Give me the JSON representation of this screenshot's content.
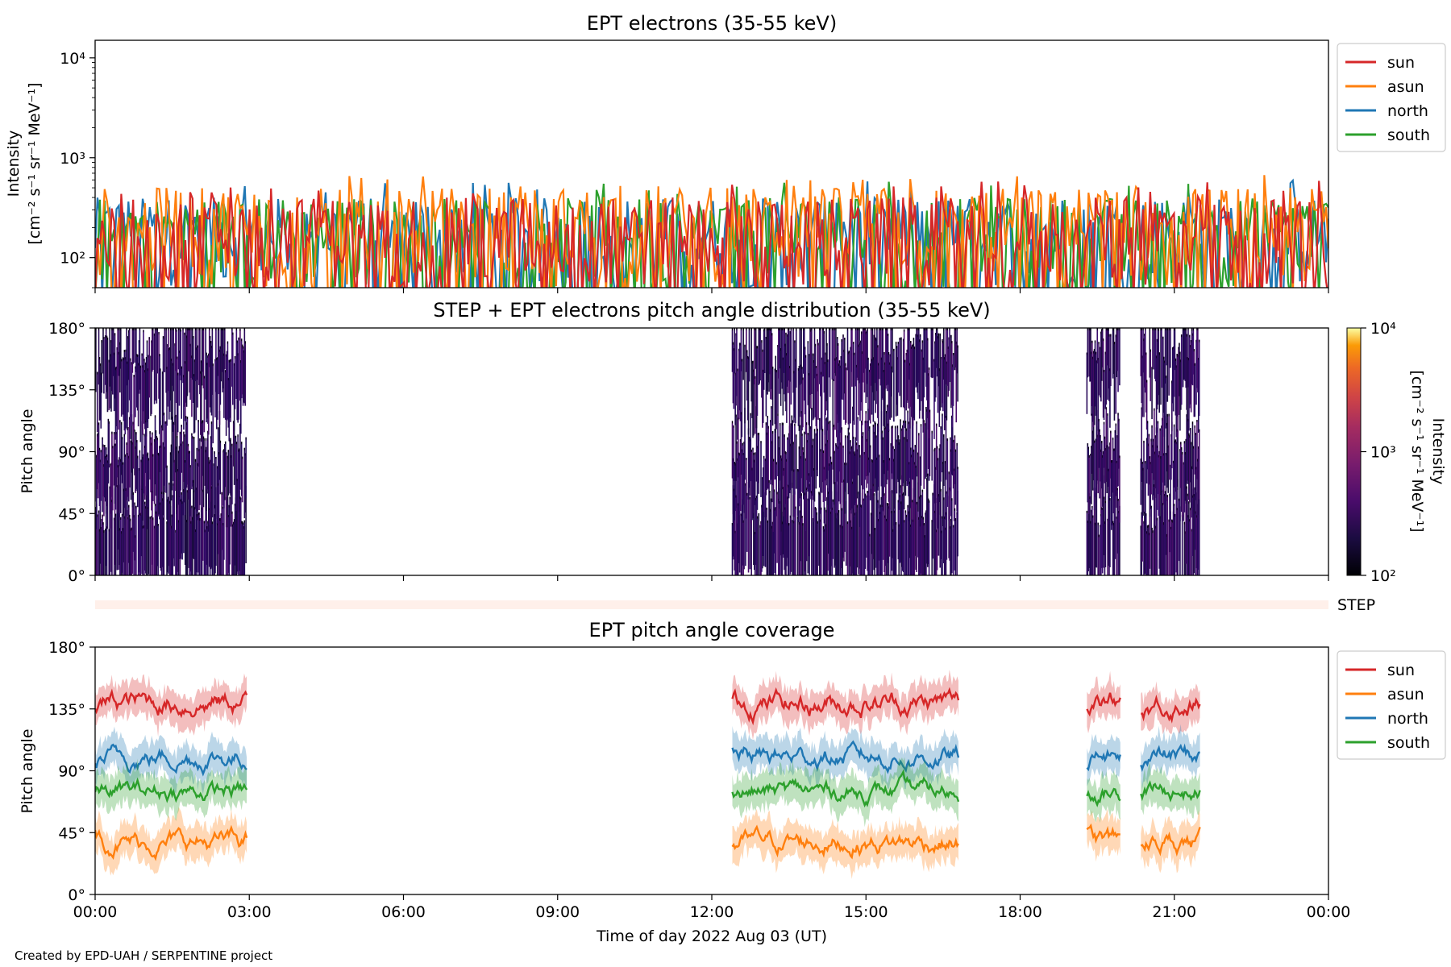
{
  "chart_data": [
    {
      "type": "line",
      "title": "EPT electrons (35-55 keV)",
      "ylabel": "Intensity",
      "ylabel_units": "[cm⁻² s⁻¹ sr⁻¹ MeV⁻¹]",
      "yscale": "log",
      "ylim": [
        50,
        15000
      ],
      "ytick_values": [
        100,
        1000,
        10000
      ],
      "ytick_labels": [
        "10²",
        "10³",
        "10⁴"
      ],
      "xlim_hours": [
        0,
        24
      ],
      "series": [
        {
          "name": "sun",
          "color": "#d62728",
          "typical_range": [
            50,
            400
          ],
          "peak_values": [
            700,
            650,
            600
          ]
        },
        {
          "name": "asun",
          "color": "#ff7f0e",
          "typical_range": [
            50,
            500
          ],
          "peak_values": [
            720,
            650,
            600
          ]
        },
        {
          "name": "north",
          "color": "#1f77b4",
          "typical_range": [
            50,
            400
          ],
          "peak_values": [
            790,
            700,
            650
          ]
        },
        {
          "name": "south",
          "color": "#2ca02c",
          "typical_range": [
            50,
            400
          ],
          "peak_values": [
            720,
            650,
            600
          ]
        }
      ],
      "legend_location": "outside-right-top"
    },
    {
      "type": "heatmap",
      "title": "STEP + EPT electrons pitch angle distribution (35-55 keV)",
      "ylabel": "Pitch angle",
      "ylim": [
        0,
        180
      ],
      "yticks": [
        "0°",
        "45°",
        "90°",
        "135°",
        "180°"
      ],
      "xlim_hours": [
        0,
        24
      ],
      "data_intervals_hours": [
        [
          0.0,
          2.95
        ],
        [
          12.4,
          16.8
        ],
        [
          19.3,
          19.95
        ],
        [
          20.35,
          21.5
        ]
      ],
      "colorbar": {
        "label": "Intensity",
        "units": "[cm⁻² s⁻¹ sr⁻¹ MeV⁻¹]",
        "scale": "log",
        "range": [
          100,
          10000
        ],
        "tick_labels": [
          "10²",
          "10³",
          "10⁴"
        ],
        "colormap": "inferno"
      },
      "typical_intensity": 200
    },
    {
      "type": "bar",
      "label": "STEP",
      "color": "#fff0ea"
    },
    {
      "type": "line",
      "title": "EPT pitch angle coverage",
      "ylabel": "Pitch angle",
      "ylim": [
        0,
        180
      ],
      "yticks": [
        "0°",
        "45°",
        "90°",
        "135°",
        "180°"
      ],
      "xlim_hours": [
        0,
        24
      ],
      "xticks": [
        "00:00",
        "03:00",
        "06:00",
        "09:00",
        "12:00",
        "15:00",
        "18:00",
        "21:00",
        "00:00"
      ],
      "xlabel": "Time of day 2022 Aug 03 (UT)",
      "segments_hours": [
        [
          0.0,
          2.95
        ],
        [
          12.4,
          16.8
        ],
        [
          19.3,
          19.95
        ],
        [
          20.35,
          21.5
        ]
      ],
      "series": [
        {
          "name": "sun",
          "color": "#d62728",
          "mean": 140,
          "amplitude": 22
        },
        {
          "name": "asun",
          "color": "#ff7f0e",
          "mean": 38,
          "amplitude": 20
        },
        {
          "name": "north",
          "color": "#1f77b4",
          "mean": 100,
          "amplitude": 20
        },
        {
          "name": "south",
          "color": "#2ca02c",
          "mean": 75,
          "amplitude": 18
        }
      ],
      "legend_location": "outside-right-top"
    }
  ],
  "credit": "Created by EPD-UAH / SERPENTINE project"
}
